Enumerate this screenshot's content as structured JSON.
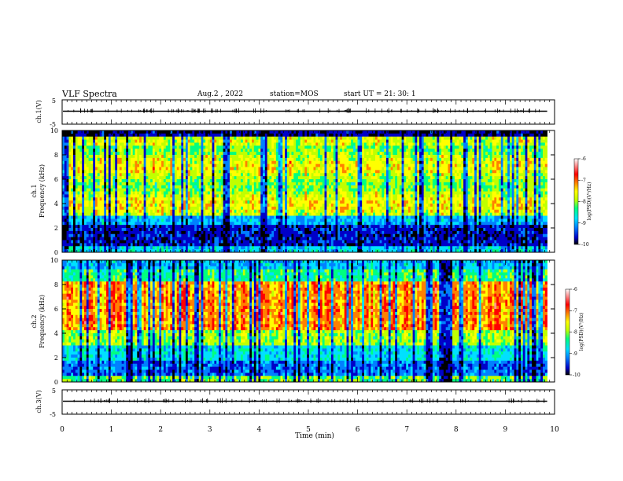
{
  "header": {
    "title": "VLF Spectra",
    "date": "Aug.2 , 2022",
    "station": "station=MOS",
    "start": "start UT = 21: 30: 1"
  },
  "chart_data": [
    {
      "type": "line",
      "panel": "ch1-waveform",
      "ylabel": "ch.1(V)",
      "yticks": [
        "5",
        "-5"
      ],
      "ylim": [
        -5,
        5
      ],
      "xlim": [
        0,
        10
      ],
      "description_level": 0
    },
    {
      "type": "heatmap",
      "panel": "ch1-spectrogram",
      "ylabel_top": "ch.1",
      "ylabel": "Frequency (kHz)",
      "ylim": [
        0,
        10
      ],
      "yticks": [
        "0",
        "2",
        "4",
        "6",
        "8",
        "10"
      ],
      "xlim": [
        0,
        9.85
      ],
      "colorbar": {
        "label": "log(PSD)(V²/Hz)",
        "ticks": [
          "-6",
          "-7",
          "-8",
          "-9",
          "-10"
        ],
        "range": [
          -10,
          -6
        ]
      }
    },
    {
      "type": "heatmap",
      "panel": "ch2-spectrogram",
      "ylabel_top": "ch.2",
      "ylabel": "Frequency (kHz)",
      "ylim": [
        0,
        10
      ],
      "yticks": [
        "0",
        "2",
        "4",
        "6",
        "8",
        "10"
      ],
      "xlim": [
        0,
        9.85
      ],
      "colorbar": {
        "label": "log(PSD)(V²/Hz)",
        "ticks": [
          "-6",
          "-7",
          "-8",
          "-9",
          "-10"
        ],
        "range": [
          -10,
          -6
        ]
      }
    },
    {
      "type": "line",
      "panel": "ch3-waveform",
      "ylabel": "ch.3(V)",
      "yticks": [
        "5",
        "-5"
      ],
      "ylim": [
        -5,
        5
      ],
      "xlim": [
        0,
        10
      ],
      "xticks": [
        "0",
        "1",
        "2",
        "3",
        "4",
        "5",
        "6",
        "7",
        "8",
        "9",
        "10"
      ],
      "xlabel": "Time (min)"
    }
  ],
  "colors": {
    "scale": [
      "#000000",
      "#0000c8",
      "#0080ff",
      "#00e0ff",
      "#00ff80",
      "#c0ff00",
      "#ffff00",
      "#ff8000",
      "#ff0000",
      "#ff9090",
      "#ffffff"
    ]
  }
}
